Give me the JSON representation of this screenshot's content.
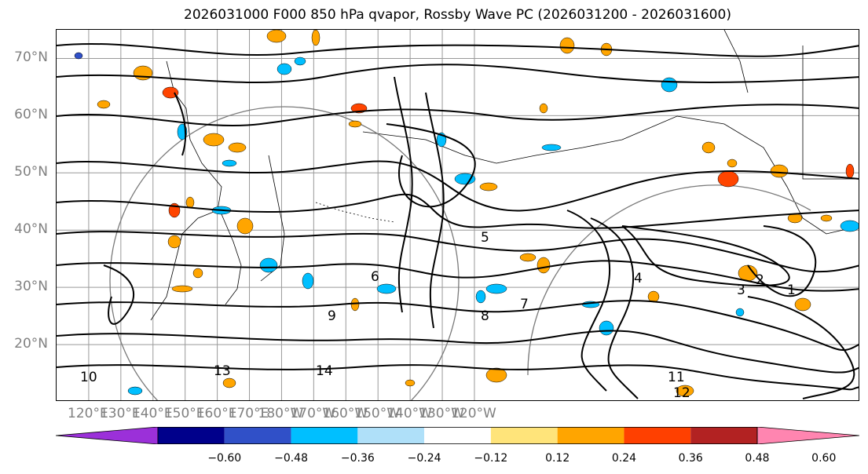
{
  "title": "2026031000 F000 850 hPa qvapor, Rossby Wave PC (2026031200 - 2026031600)",
  "map": {
    "lat_labels": [
      "70°N",
      "60°N",
      "50°N",
      "40°N",
      "30°N",
      "20°N"
    ],
    "lon_labels": [
      "120°E",
      "130°E",
      "140°E",
      "150°E",
      "160°E",
      "170°E",
      "180°W",
      "170°W",
      "160°W",
      "150°W",
      "140°W",
      "130°W",
      "120°W"
    ],
    "contour_labels": [
      "1",
      "2",
      "3",
      "4",
      "5",
      "6",
      "7",
      "8",
      "9",
      "10",
      "11",
      "12",
      "13",
      "14"
    ],
    "field_colors": {
      "positive_light": "#ffa500",
      "positive_dark": "#ff4500",
      "negative_light": "#00bfff",
      "negative_dark": "#3050c8"
    }
  },
  "colorbar": {
    "colors": [
      "#9b30d9",
      "#00008b",
      "#3050c8",
      "#00bfff",
      "#afe0f9",
      "#ffffff",
      "#ffe47a",
      "#ffa500",
      "#ff4000",
      "#b22222",
      "#ff85b0"
    ],
    "tick_labels": [
      "−0.60",
      "−0.48",
      "−0.36",
      "−0.24",
      "−0.12",
      "0.12",
      "0.24",
      "0.36",
      "0.48",
      "0.60"
    ]
  }
}
